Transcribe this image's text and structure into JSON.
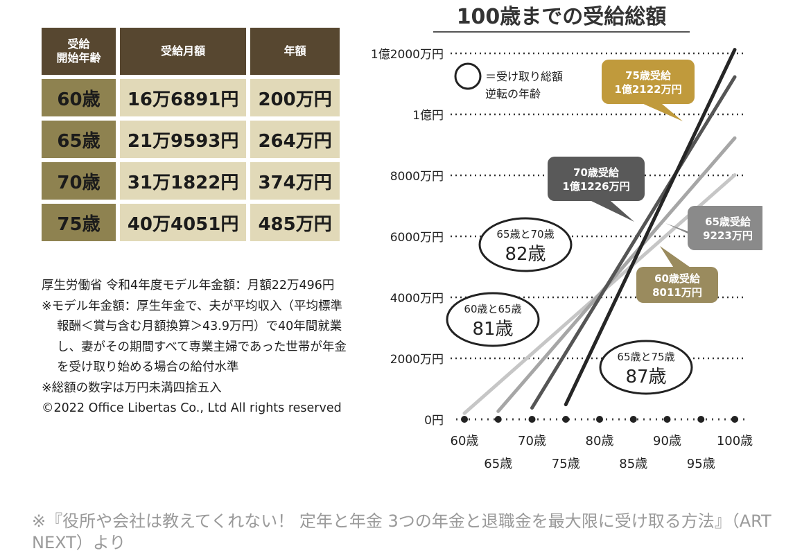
{
  "table": {
    "headers": [
      "受給\n開始年齢",
      "受給月額",
      "年額"
    ],
    "rows": [
      {
        "age": "60歳",
        "monthly": "16万6891円",
        "annual": "200万円"
      },
      {
        "age": "65歳",
        "monthly": "21万9593円",
        "annual": "264万円"
      },
      {
        "age": "70歳",
        "monthly": "31万1822円",
        "annual": "374万円"
      },
      {
        "age": "75歳",
        "monthly": "40万4051円",
        "annual": "485万円"
      }
    ]
  },
  "notes": {
    "line1": "厚生労働省 令和4年度モデル年金額：月額22万496円",
    "line2": "※モデル年金額：厚生年金で、夫が平均収入（平均標準報酬＜賞与含む月額換算＞43.9万円）で40年間就業し、妻がその期間すべて専業主婦であった世帯が年金を受け取り始める場合の給付水準",
    "line3": "※総額の数字は万円未満四捨五入",
    "line4": "©2022 Office Libertas Co., Ltd All rights reserved"
  },
  "footer": "※『役所や会社は教えてくれない！ 定年と年金 3つの年金と退職金を最大限に受け取る方法』（ART NEXT）より",
  "chart_data": {
    "type": "line",
    "title": "100歳までの受給総額",
    "x_tick_labels": [
      "60歳",
      "65歳",
      "70歳",
      "75歳",
      "80歳",
      "85歳",
      "90歳",
      "95歳",
      "100歳"
    ],
    "x_ticks": [
      60,
      65,
      70,
      75,
      80,
      85,
      90,
      95,
      100
    ],
    "xlim": [
      60,
      100
    ],
    "y_tick_labels": [
      "0円",
      "2000万円",
      "4000万円",
      "6000万円",
      "8000万円",
      "1億円",
      "1億2000万円"
    ],
    "y_ticks": [
      0,
      2000,
      4000,
      6000,
      8000,
      10000,
      12000
    ],
    "ylim": [
      0,
      12000
    ],
    "y_unit": "万円",
    "series": [
      {
        "name": "60歳受給",
        "color": "#c6c6c6",
        "x": [
          60,
          100
        ],
        "y": [
          200,
          8011
        ],
        "label": "60歳受給\n8011万円",
        "bubble": "#9a8b5e"
      },
      {
        "name": "65歳受給",
        "color": "#a6a6a6",
        "x": [
          65,
          100
        ],
        "y": [
          264,
          9223
        ],
        "label": "65歳受給\n9223万円",
        "bubble": "#8a8a8a"
      },
      {
        "name": "70歳受給",
        "color": "#555555",
        "x": [
          70,
          100
        ],
        "y": [
          374,
          11226
        ],
        "label": "70歳受給\n1億1226万円",
        "bubble": "#595959"
      },
      {
        "name": "75歳受給",
        "color": "#262626",
        "x": [
          75,
          100
        ],
        "y": [
          485,
          12122
        ],
        "label": "75歳受給\n1億2122万円",
        "bubble": "#c09a3c"
      }
    ],
    "legend_note": "＝受け取り総額\n逆転の年齢",
    "annotations": [
      {
        "top": "60歳と65歳",
        "big": "81歳"
      },
      {
        "top": "65歳と70歳",
        "big": "82歳"
      },
      {
        "top": "65歳と75歳",
        "big": "87歳"
      }
    ],
    "grid": true
  }
}
